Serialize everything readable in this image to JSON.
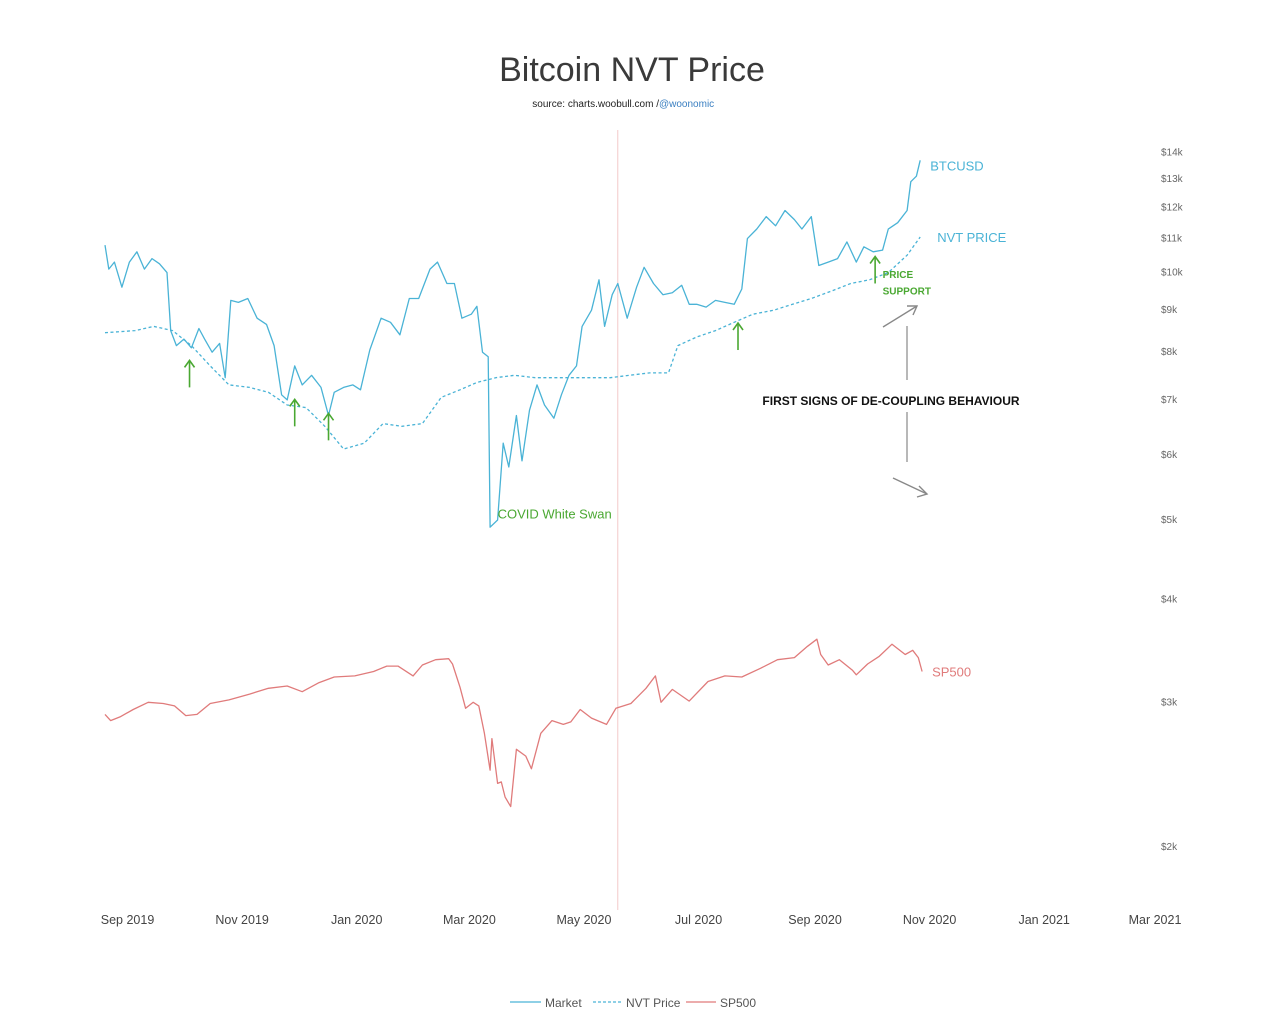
{
  "chart_data": {
    "type": "line",
    "title": "Bitcoin NVT Price",
    "subtitle": "source: charts.woobull.com / ",
    "subtitle_handle": "@woonomic",
    "y_scale": "log",
    "ylim": [
      1700,
      14500
    ],
    "y_ticks": [
      {
        "value": 14000,
        "label": "$14k"
      },
      {
        "value": 13000,
        "label": "$13k"
      },
      {
        "value": 12000,
        "label": "$12k"
      },
      {
        "value": 11000,
        "label": "$11k"
      },
      {
        "value": 10000,
        "label": "$10k"
      },
      {
        "value": 9000,
        "label": "$9k"
      },
      {
        "value": 8000,
        "label": "$8k"
      },
      {
        "value": 7000,
        "label": "$7k"
      },
      {
        "value": 6000,
        "label": "$6k"
      },
      {
        "value": 5000,
        "label": "$5k"
      },
      {
        "value": 4000,
        "label": "$4k"
      },
      {
        "value": 3000,
        "label": "$3k"
      },
      {
        "value": 2000,
        "label": "$2k"
      }
    ],
    "x_ticks": [
      {
        "date": "2019-09-01",
        "label": "Sep 2019"
      },
      {
        "date": "2019-11-01",
        "label": "Nov 2019"
      },
      {
        "date": "2020-01-01",
        "label": "Jan 2020"
      },
      {
        "date": "2020-03-01",
        "label": "Mar 2020"
      },
      {
        "date": "2020-05-01",
        "label": "May 2020"
      },
      {
        "date": "2020-07-01",
        "label": "Jul 2020"
      },
      {
        "date": "2020-09-01",
        "label": "Sep 2020"
      },
      {
        "date": "2020-11-01",
        "label": "Nov 2020"
      },
      {
        "date": "2021-01-01",
        "label": "Jan 2021"
      },
      {
        "date": "2021-03-01",
        "label": "Mar 2021"
      }
    ],
    "xlim": [
      "2019-08-20",
      "2021-03-01"
    ],
    "vertical_marker": "2020-05-19",
    "legend_position": "bottom-center",
    "series": [
      {
        "name": "Market",
        "label": "BTCUSD",
        "color": "#4ab3d6",
        "style": "solid",
        "points": [
          [
            "2019-08-20",
            10800
          ],
          [
            "2019-08-22",
            10100
          ],
          [
            "2019-08-25",
            10300
          ],
          [
            "2019-08-29",
            9600
          ],
          [
            "2019-09-02",
            10300
          ],
          [
            "2019-09-06",
            10600
          ],
          [
            "2019-09-10",
            10100
          ],
          [
            "2019-09-14",
            10400
          ],
          [
            "2019-09-18",
            10250
          ],
          [
            "2019-09-22",
            10000
          ],
          [
            "2019-09-24",
            8500
          ],
          [
            "2019-09-27",
            8150
          ],
          [
            "2019-10-01",
            8300
          ],
          [
            "2019-10-05",
            8100
          ],
          [
            "2019-10-09",
            8550
          ],
          [
            "2019-10-12",
            8300
          ],
          [
            "2019-10-16",
            8000
          ],
          [
            "2019-10-20",
            8200
          ],
          [
            "2019-10-23",
            7450
          ],
          [
            "2019-10-26",
            9250
          ],
          [
            "2019-10-30",
            9200
          ],
          [
            "2019-11-04",
            9300
          ],
          [
            "2019-11-09",
            8800
          ],
          [
            "2019-11-14",
            8650
          ],
          [
            "2019-11-18",
            8150
          ],
          [
            "2019-11-22",
            7100
          ],
          [
            "2019-11-25",
            7000
          ],
          [
            "2019-11-29",
            7700
          ],
          [
            "2019-12-03",
            7300
          ],
          [
            "2019-12-08",
            7500
          ],
          [
            "2019-12-13",
            7250
          ],
          [
            "2019-12-17",
            6700
          ],
          [
            "2019-12-20",
            7150
          ],
          [
            "2019-12-25",
            7250
          ],
          [
            "2019-12-30",
            7300
          ],
          [
            "2020-01-03",
            7200
          ],
          [
            "2020-01-08",
            8050
          ],
          [
            "2020-01-14",
            8800
          ],
          [
            "2020-01-19",
            8700
          ],
          [
            "2020-01-24",
            8400
          ],
          [
            "2020-01-29",
            9300
          ],
          [
            "2020-02-03",
            9300
          ],
          [
            "2020-02-09",
            10100
          ],
          [
            "2020-02-13",
            10300
          ],
          [
            "2020-02-18",
            9700
          ],
          [
            "2020-02-22",
            9700
          ],
          [
            "2020-02-26",
            8800
          ],
          [
            "2020-03-02",
            8900
          ],
          [
            "2020-03-05",
            9100
          ],
          [
            "2020-03-08",
            8000
          ],
          [
            "2020-03-11",
            7900
          ],
          [
            "2020-03-12",
            4900
          ],
          [
            "2020-03-16",
            5000
          ],
          [
            "2020-03-19",
            6200
          ],
          [
            "2020-03-22",
            5800
          ],
          [
            "2020-03-26",
            6700
          ],
          [
            "2020-03-29",
            5900
          ],
          [
            "2020-04-02",
            6800
          ],
          [
            "2020-04-06",
            7300
          ],
          [
            "2020-04-10",
            6900
          ],
          [
            "2020-04-15",
            6650
          ],
          [
            "2020-04-19",
            7100
          ],
          [
            "2020-04-23",
            7500
          ],
          [
            "2020-04-27",
            7700
          ],
          [
            "2020-04-30",
            8600
          ],
          [
            "2020-05-05",
            9000
          ],
          [
            "2020-05-09",
            9800
          ],
          [
            "2020-05-12",
            8600
          ],
          [
            "2020-05-16",
            9400
          ],
          [
            "2020-05-19",
            9700
          ],
          [
            "2020-05-24",
            8800
          ],
          [
            "2020-05-29",
            9600
          ],
          [
            "2020-06-02",
            10150
          ],
          [
            "2020-06-07",
            9700
          ],
          [
            "2020-06-12",
            9400
          ],
          [
            "2020-06-17",
            9450
          ],
          [
            "2020-06-22",
            9650
          ],
          [
            "2020-06-26",
            9150
          ],
          [
            "2020-06-30",
            9150
          ],
          [
            "2020-07-05",
            9080
          ],
          [
            "2020-07-10",
            9250
          ],
          [
            "2020-07-15",
            9200
          ],
          [
            "2020-07-20",
            9150
          ],
          [
            "2020-07-24",
            9550
          ],
          [
            "2020-07-27",
            11000
          ],
          [
            "2020-08-01",
            11300
          ],
          [
            "2020-08-06",
            11700
          ],
          [
            "2020-08-11",
            11400
          ],
          [
            "2020-08-16",
            11900
          ],
          [
            "2020-08-21",
            11600
          ],
          [
            "2020-08-25",
            11300
          ],
          [
            "2020-08-30",
            11700
          ],
          [
            "2020-09-03",
            10200
          ],
          [
            "2020-09-08",
            10300
          ],
          [
            "2020-09-13",
            10400
          ],
          [
            "2020-09-18",
            10900
          ],
          [
            "2020-09-23",
            10300
          ],
          [
            "2020-09-27",
            10750
          ],
          [
            "2020-10-02",
            10600
          ],
          [
            "2020-10-07",
            10650
          ],
          [
            "2020-10-10",
            11300
          ],
          [
            "2020-10-15",
            11500
          ],
          [
            "2020-10-20",
            11900
          ],
          [
            "2020-10-22",
            12900
          ],
          [
            "2020-10-25",
            13100
          ],
          [
            "2020-10-27",
            13700
          ]
        ]
      },
      {
        "name": "NVT Price",
        "label": "NVT PRICE",
        "color": "#4ab3d6",
        "style": "dashed",
        "points": [
          [
            "2019-08-20",
            8450
          ],
          [
            "2019-09-05",
            8500
          ],
          [
            "2019-09-15",
            8600
          ],
          [
            "2019-09-25",
            8500
          ],
          [
            "2019-10-05",
            8150
          ],
          [
            "2019-10-15",
            7700
          ],
          [
            "2019-10-25",
            7300
          ],
          [
            "2019-11-05",
            7250
          ],
          [
            "2019-11-15",
            7150
          ],
          [
            "2019-11-25",
            6900
          ],
          [
            "2019-12-05",
            6850
          ],
          [
            "2019-12-15",
            6500
          ],
          [
            "2019-12-25",
            6100
          ],
          [
            "2020-01-05",
            6200
          ],
          [
            "2020-01-15",
            6550
          ],
          [
            "2020-01-25",
            6500
          ],
          [
            "2020-02-05",
            6550
          ],
          [
            "2020-02-15",
            7050
          ],
          [
            "2020-02-25",
            7200
          ],
          [
            "2020-03-05",
            7350
          ],
          [
            "2020-03-15",
            7450
          ],
          [
            "2020-03-25",
            7500
          ],
          [
            "2020-04-05",
            7450
          ],
          [
            "2020-04-15",
            7450
          ],
          [
            "2020-04-25",
            7450
          ],
          [
            "2020-05-05",
            7450
          ],
          [
            "2020-05-15",
            7450
          ],
          [
            "2020-05-25",
            7500
          ],
          [
            "2020-06-05",
            7550
          ],
          [
            "2020-06-15",
            7550
          ],
          [
            "2020-06-20",
            8150
          ],
          [
            "2020-06-30",
            8350
          ],
          [
            "2020-07-10",
            8500
          ],
          [
            "2020-07-20",
            8700
          ],
          [
            "2020-07-30",
            8900
          ],
          [
            "2020-08-10",
            9000
          ],
          [
            "2020-08-20",
            9150
          ],
          [
            "2020-08-30",
            9300
          ],
          [
            "2020-09-10",
            9500
          ],
          [
            "2020-09-20",
            9700
          ],
          [
            "2020-09-30",
            9800
          ],
          [
            "2020-10-10",
            10000
          ],
          [
            "2020-10-20",
            10500
          ],
          [
            "2020-10-27",
            11050
          ]
        ]
      },
      {
        "name": "SP500",
        "label": "SP500",
        "color": "#e07b7b",
        "style": "solid",
        "points": [
          [
            "2019-08-20",
            2900
          ],
          [
            "2019-08-23",
            2850
          ],
          [
            "2019-08-28",
            2880
          ],
          [
            "2019-09-04",
            2940
          ],
          [
            "2019-09-12",
            3000
          ],
          [
            "2019-09-20",
            2990
          ],
          [
            "2019-09-26",
            2970
          ],
          [
            "2019-10-02",
            2890
          ],
          [
            "2019-10-08",
            2900
          ],
          [
            "2019-10-15",
            2990
          ],
          [
            "2019-10-25",
            3020
          ],
          [
            "2019-11-05",
            3070
          ],
          [
            "2019-11-15",
            3120
          ],
          [
            "2019-11-25",
            3140
          ],
          [
            "2019-12-03",
            3090
          ],
          [
            "2019-12-12",
            3170
          ],
          [
            "2019-12-20",
            3220
          ],
          [
            "2019-12-31",
            3230
          ],
          [
            "2020-01-10",
            3270
          ],
          [
            "2020-01-17",
            3320
          ],
          [
            "2020-01-23",
            3320
          ],
          [
            "2020-01-31",
            3230
          ],
          [
            "2020-02-05",
            3330
          ],
          [
            "2020-02-12",
            3380
          ],
          [
            "2020-02-19",
            3390
          ],
          [
            "2020-02-21",
            3340
          ],
          [
            "2020-02-25",
            3130
          ],
          [
            "2020-02-28",
            2950
          ],
          [
            "2020-03-03",
            3000
          ],
          [
            "2020-03-06",
            2970
          ],
          [
            "2020-03-09",
            2750
          ],
          [
            "2020-03-12",
            2480
          ],
          [
            "2020-03-13",
            2710
          ],
          [
            "2020-03-16",
            2390
          ],
          [
            "2020-03-18",
            2400
          ],
          [
            "2020-03-20",
            2300
          ],
          [
            "2020-03-23",
            2240
          ],
          [
            "2020-03-26",
            2630
          ],
          [
            "2020-03-31",
            2580
          ],
          [
            "2020-04-03",
            2490
          ],
          [
            "2020-04-08",
            2750
          ],
          [
            "2020-04-14",
            2850
          ],
          [
            "2020-04-20",
            2820
          ],
          [
            "2020-04-24",
            2840
          ],
          [
            "2020-04-29",
            2940
          ],
          [
            "2020-05-05",
            2870
          ],
          [
            "2020-05-13",
            2820
          ],
          [
            "2020-05-18",
            2950
          ],
          [
            "2020-05-26",
            2990
          ],
          [
            "2020-06-03",
            3120
          ],
          [
            "2020-06-08",
            3230
          ],
          [
            "2020-06-11",
            3000
          ],
          [
            "2020-06-17",
            3110
          ],
          [
            "2020-06-26",
            3010
          ],
          [
            "2020-07-06",
            3180
          ],
          [
            "2020-07-15",
            3230
          ],
          [
            "2020-07-24",
            3220
          ],
          [
            "2020-08-03",
            3300
          ],
          [
            "2020-08-12",
            3380
          ],
          [
            "2020-08-21",
            3400
          ],
          [
            "2020-08-28",
            3510
          ],
          [
            "2020-09-02",
            3580
          ],
          [
            "2020-09-04",
            3430
          ],
          [
            "2020-09-08",
            3330
          ],
          [
            "2020-09-14",
            3380
          ],
          [
            "2020-09-21",
            3280
          ],
          [
            "2020-09-23",
            3240
          ],
          [
            "2020-09-29",
            3340
          ],
          [
            "2020-10-05",
            3410
          ],
          [
            "2020-10-12",
            3530
          ],
          [
            "2020-10-19",
            3430
          ],
          [
            "2020-10-23",
            3470
          ],
          [
            "2020-10-26",
            3400
          ],
          [
            "2020-10-28",
            3270
          ]
        ]
      }
    ],
    "annotations": [
      {
        "text": "COVID White Swan",
        "date": "2020-03-16",
        "value": 5020,
        "color": "#4aa832"
      },
      {
        "text": "PRICE",
        "date": "2020-10-07",
        "value": 9850,
        "color": "#4aa832"
      },
      {
        "text": "SUPPORT",
        "date": "2020-10-07",
        "value": 9400,
        "color": "#4aa832"
      },
      {
        "text": "FIRST SIGNS OF DE-COUPLING BEHAVIOUR",
        "date": "2020-08-04",
        "value": 6900,
        "color": "#111111"
      }
    ],
    "support_arrows": [
      {
        "date": "2019-10-04",
        "value": 7250
      },
      {
        "date": "2019-11-29",
        "value": 6500
      },
      {
        "date": "2019-12-17",
        "value": 6250
      },
      {
        "date": "2020-07-22",
        "value": 8050
      },
      {
        "date": "2020-10-03",
        "value": 9700
      }
    ]
  },
  "legend": [
    {
      "label": "Market",
      "color": "#4ab3d6",
      "style": "solid"
    },
    {
      "label": "NVT Price",
      "color": "#4ab3d6",
      "style": "dashed"
    },
    {
      "label": "SP500",
      "color": "#e07b7b",
      "style": "solid"
    }
  ]
}
